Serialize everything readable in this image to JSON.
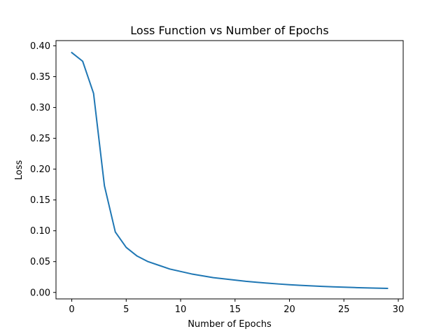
{
  "chart_data": {
    "type": "line",
    "title": "Loss Function vs Number of Epochs",
    "xlabel": "Number of Epochs",
    "ylabel": "Loss",
    "xlim": [
      -1.45,
      30.45
    ],
    "ylim": [
      -0.0105,
      0.4085
    ],
    "x_ticks": [
      0,
      5,
      10,
      15,
      20,
      25,
      30
    ],
    "y_ticks": [
      0.0,
      0.05,
      0.1,
      0.15,
      0.2,
      0.25,
      0.3,
      0.35,
      0.4
    ],
    "y_tick_labels": [
      "0.00",
      "0.05",
      "0.10",
      "0.15",
      "0.20",
      "0.25",
      "0.30",
      "0.35",
      "0.40"
    ],
    "x_tick_labels": [
      "0",
      "5",
      "10",
      "15",
      "20",
      "25",
      "30"
    ],
    "grid": false,
    "series": [
      {
        "color": "#1f77b4",
        "x": [
          0,
          1,
          2,
          3,
          4,
          5,
          6,
          7,
          8,
          9,
          10,
          11,
          12,
          13,
          14,
          15,
          16,
          17,
          18,
          19,
          20,
          21,
          22,
          23,
          24,
          25,
          26,
          27,
          28,
          29
        ],
        "values": [
          0.389,
          0.375,
          0.323,
          0.173,
          0.098,
          0.073,
          0.059,
          0.05,
          0.044,
          0.038,
          0.034,
          0.03,
          0.027,
          0.024,
          0.022,
          0.02,
          0.018,
          0.0165,
          0.015,
          0.0137,
          0.0125,
          0.0115,
          0.0106,
          0.0098,
          0.0091,
          0.0085,
          0.0079,
          0.0074,
          0.0069,
          0.0065
        ]
      }
    ]
  }
}
